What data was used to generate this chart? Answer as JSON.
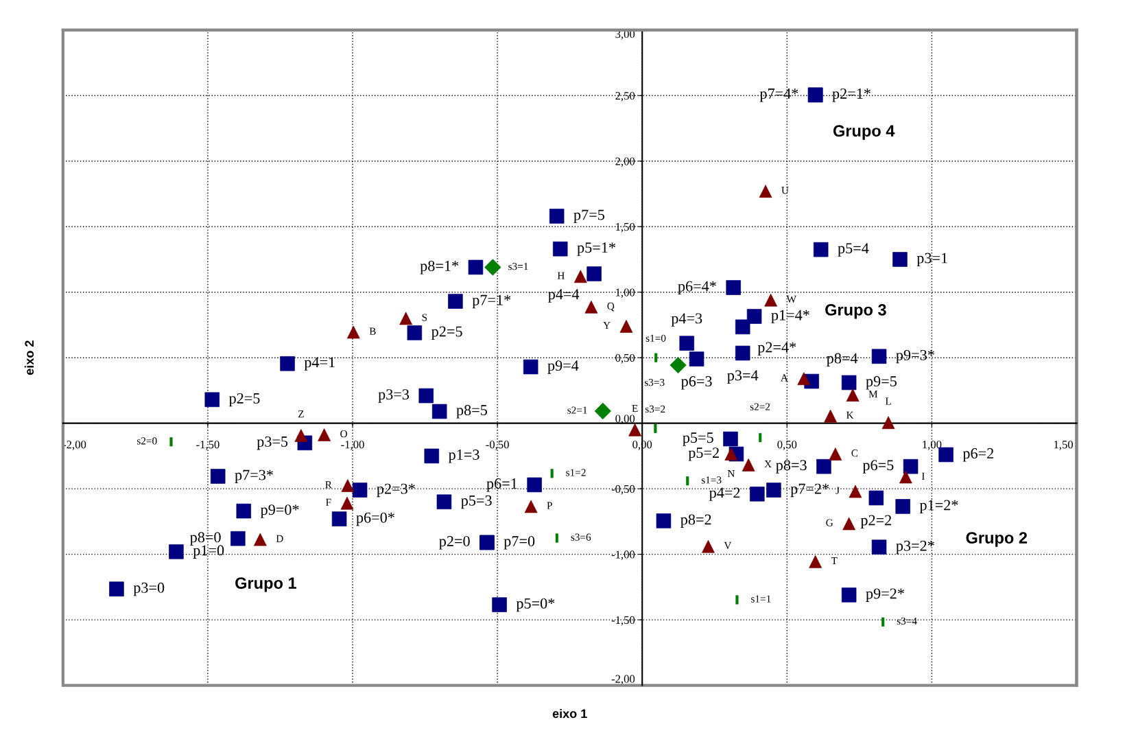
{
  "chart_data": {
    "type": "scatter",
    "xlabel": "eixo 1",
    "ylabel": "eixo 2",
    "xlim": [
      -2,
      1.5
    ],
    "ylim": [
      -2,
      3
    ],
    "xticks": [
      {
        "value": -2,
        "label": "-2,00"
      },
      {
        "value": -1.5,
        "label": "-1,50"
      },
      {
        "value": -1,
        "label": "-1,00"
      },
      {
        "value": -0.5,
        "label": "-0,50"
      },
      {
        "value": 0,
        "label": "0,00"
      },
      {
        "value": 0.5,
        "label": "0,50"
      },
      {
        "value": 1,
        "label": "1,00"
      },
      {
        "value": 1.5,
        "label": "1,50"
      }
    ],
    "yticks": [
      {
        "value": -2,
        "label": "-2,00"
      },
      {
        "value": -1.5,
        "label": "-1,50"
      },
      {
        "value": -1,
        "label": "-1,00"
      },
      {
        "value": -0.5,
        "label": "-0,50"
      },
      {
        "value": 0,
        "label": "0,00"
      },
      {
        "value": 0.5,
        "label": "0,50"
      },
      {
        "value": 1,
        "label": "1,00"
      },
      {
        "value": 1.5,
        "label": "1,50"
      },
      {
        "value": 2,
        "label": "2,00"
      },
      {
        "value": 2.5,
        "label": "2,50"
      },
      {
        "value": 3,
        "label": "3,00"
      }
    ],
    "grid": true,
    "series": [
      {
        "color": "#000080",
        "marker": "square",
        "x": [
          -1.485,
          -1.225,
          -0.786,
          -0.746,
          -0.7,
          -0.575,
          -0.645,
          -0.385,
          -0.295,
          -0.283,
          -0.166,
          -0.727,
          -0.372,
          -0.684,
          -0.536,
          -0.536,
          -0.493,
          -1.165,
          -1.465,
          -0.975,
          -1.376,
          -1.046,
          -1.396,
          -1.609,
          -1.815,
          0.074,
          0.305,
          0.325,
          0.397,
          0.454,
          0.154,
          0.188,
          0.315,
          0.387,
          0.347,
          0.347,
          0.598,
          0.598,
          0.617,
          0.89,
          0.818,
          0.585,
          0.714,
          0.627,
          0.927,
          1.049,
          0.808,
          0.9,
          0.818,
          0.714
        ],
        "values": [
          0.18,
          0.455,
          0.69,
          0.21,
          0.09,
          1.19,
          0.93,
          0.43,
          1.58,
          1.33,
          1.14,
          -0.25,
          -0.47,
          -0.6,
          -0.91,
          -0.91,
          -1.385,
          -0.15,
          -0.405,
          -0.51,
          -0.67,
          -0.73,
          -0.88,
          -0.98,
          -1.265,
          -0.745,
          -0.12,
          -0.235,
          -0.54,
          -0.51,
          0.61,
          0.49,
          1.035,
          0.815,
          0.735,
          0.535,
          2.505,
          2.505,
          1.325,
          1.25,
          0.51,
          0.32,
          0.31,
          -0.33,
          -0.33,
          -0.24,
          -0.57,
          -0.635,
          -0.945,
          -1.31
        ],
        "value_labels": [
          "p2=5",
          "p4=1",
          "p2=5",
          "p3=3",
          "p8=5",
          "p8=1*",
          "p7=1*",
          "p9=4",
          "p7=5",
          "p5=1*",
          "p4=4",
          "p1=3",
          "p6=1",
          "p5=3",
          "p7=0",
          "p2=0",
          "p5=0*",
          "p3=5",
          "p7=3*",
          "p2=3*",
          "p9=0*",
          "p6=0*",
          "p8=0",
          "p1=0",
          "p3=0",
          "p8=2",
          "p5=5",
          "p5=2",
          "p4=2",
          "p7=2*",
          "p4=3",
          "p6=3",
          "p6=4*",
          "p1=4*",
          "p2=4*",
          "p3=4",
          "p2=1*",
          "p7=4*",
          "p5=4",
          "p3=1",
          "p9=3*",
          "p8=4",
          "p9=5",
          "p8=3",
          "p6=5",
          "p6=2",
          "p2=2",
          "p1=2*",
          "p3=2*",
          "p9=2*"
        ]
      },
      {
        "color": "#800000",
        "marker": "triangle",
        "x": [
          -0.997,
          -0.816,
          -0.213,
          -0.176,
          -0.055,
          0.426,
          0.444,
          0.558,
          0.727,
          0.65,
          0.85,
          -0.025,
          -1.178,
          -1.098,
          -1.017,
          -1.019,
          -1.319,
          -0.384,
          0.307,
          0.367,
          0.667,
          0.91,
          0.736,
          0.714,
          0.598,
          0.228
        ],
        "values": [
          0.695,
          0.8,
          1.12,
          0.887,
          0.74,
          1.77,
          0.94,
          0.34,
          0.215,
          0.055,
          0.005,
          -0.05,
          -0.093,
          -0.088,
          -0.476,
          -0.61,
          -0.887,
          -0.635,
          -0.235,
          -0.318,
          -0.235,
          -0.41,
          -0.52,
          -0.766,
          -1.056,
          -0.94
        ],
        "value_labels": [
          "B",
          "S",
          "H",
          "Q",
          "Y",
          "U",
          "W",
          "A",
          "M",
          "K",
          "L",
          "E",
          "Z",
          "O",
          "R",
          "F",
          "D",
          "P",
          "N",
          "X",
          "C",
          "I",
          "J",
          "G",
          "T",
          "V"
        ]
      },
      {
        "color": "#008000",
        "marker": "diamond",
        "x": [
          -0.516,
          0.124,
          -0.136
        ],
        "values": [
          1.19,
          0.443,
          0.093
        ],
        "value_labels": [
          "s3=1",
          "s3=3",
          "s2=1"
        ]
      },
      {
        "color": "#008000",
        "x": [
          -1.627,
          0.047,
          0.045,
          0.407,
          0.156,
          -0.312,
          -0.295,
          0.327,
          0.831
        ],
        "values": [
          -0.142,
          0.5,
          -0.04,
          -0.11,
          -0.44,
          -0.383,
          -0.876,
          -1.347,
          -1.516
        ],
        "value_labels": [
          "s2=0",
          "s1=0",
          "s3=2",
          "s2=2",
          "s1=3",
          "s1=2",
          "s3=6",
          "s1=1",
          "s3=4"
        ]
      }
    ],
    "annotations": [
      "Grupo 1",
      "Grupo 2",
      "Grupo 3",
      "Grupo 4"
    ]
  }
}
